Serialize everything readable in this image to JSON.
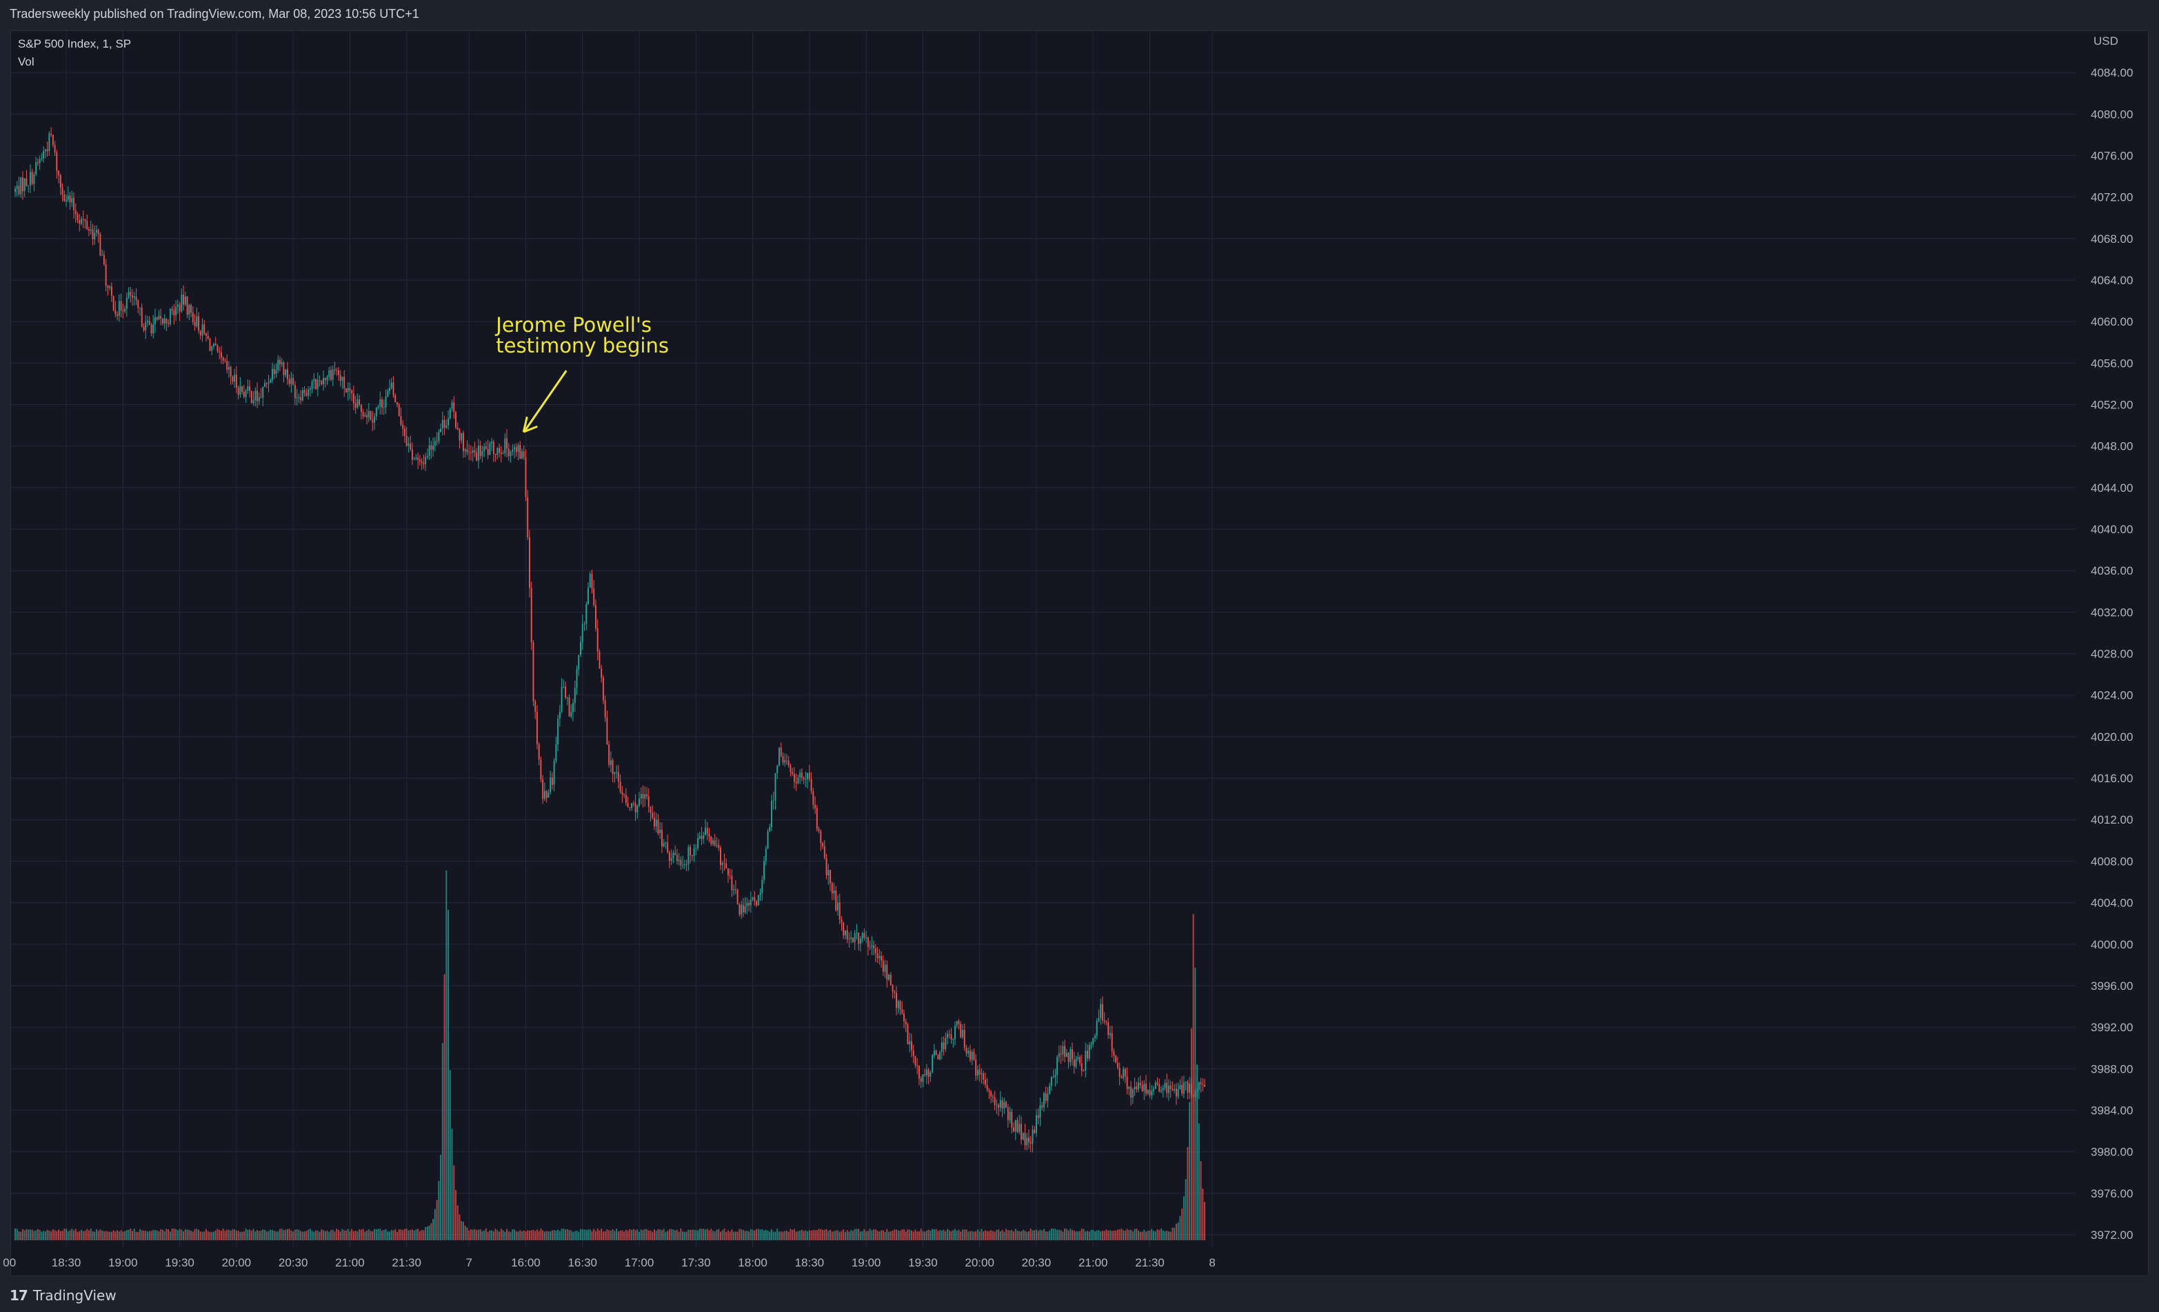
{
  "header": {
    "publish_text": "Tradersweekly published on TradingView.com, Mar 08, 2023 10:56 UTC+1"
  },
  "legend": {
    "symbol": "S&P 500 Index, 1, SP",
    "volume": "Vol"
  },
  "footer": {
    "brand": "TradingView",
    "logo_mark": "17"
  },
  "colors": {
    "background": "#141722",
    "frame": "#1e222d",
    "grid": "#232837",
    "text": "#b2b5be",
    "up": "#26a69a",
    "down": "#ef5350",
    "annotation": "#f0e63c"
  },
  "chart_data": {
    "type": "candlestick",
    "currency": "USD",
    "y_ticks": [
      4084,
      4080,
      4076,
      4072,
      4068,
      4064,
      4060,
      4056,
      4052,
      4048,
      4044,
      4040,
      4036,
      4032,
      4028,
      4024,
      4020,
      4016,
      4012,
      4008,
      4004,
      4000,
      3996,
      3992,
      3988,
      3984,
      3980,
      3976,
      3972
    ],
    "y_tick_format": "fixed2",
    "ylim": [
      3970.8,
      4088.0
    ],
    "x_ticks": [
      "00",
      "18:30",
      "19:00",
      "19:30",
      "20:00",
      "20:30",
      "21:00",
      "21:30",
      "7",
      "16:00",
      "16:30",
      "17:00",
      "17:30",
      "18:00",
      "18:30",
      "19:00",
      "19:30",
      "20:00",
      "20:30",
      "21:00",
      "21:30",
      "8"
    ],
    "x_tick_bar_index": [
      -3,
      27,
      57,
      87,
      117,
      147,
      177,
      207,
      240,
      270,
      300,
      330,
      360,
      390,
      420,
      450,
      480,
      510,
      540,
      570,
      600,
      633
    ],
    "bar_count": 630,
    "path_anchors": [
      [
        0,
        4072.5
      ],
      [
        10,
        4074
      ],
      [
        20,
        4077.8
      ],
      [
        25,
        4073
      ],
      [
        35,
        4070
      ],
      [
        45,
        4068
      ],
      [
        50,
        4063
      ],
      [
        55,
        4061
      ],
      [
        62,
        4062.5
      ],
      [
        70,
        4059.5
      ],
      [
        80,
        4060
      ],
      [
        90,
        4062
      ],
      [
        100,
        4059
      ],
      [
        110,
        4056
      ],
      [
        120,
        4053.5
      ],
      [
        130,
        4052.5
      ],
      [
        140,
        4056.5
      ],
      [
        150,
        4053
      ],
      [
        160,
        4054
      ],
      [
        170,
        4055.5
      ],
      [
        180,
        4052
      ],
      [
        190,
        4051
      ],
      [
        200,
        4053.5
      ],
      [
        210,
        4047.5
      ],
      [
        215,
        4046
      ],
      [
        225,
        4049.5
      ],
      [
        232,
        4051.5
      ],
      [
        240,
        4047
      ],
      [
        250,
        4047.5
      ],
      [
        260,
        4048
      ],
      [
        270,
        4047
      ],
      [
        272,
        4040
      ],
      [
        275,
        4024
      ],
      [
        280,
        4014
      ],
      [
        285,
        4016
      ],
      [
        290,
        4025
      ],
      [
        295,
        4022
      ],
      [
        305,
        4035.5
      ],
      [
        315,
        4018
      ],
      [
        325,
        4013
      ],
      [
        335,
        4014
      ],
      [
        345,
        4009
      ],
      [
        355,
        4008
      ],
      [
        365,
        4011
      ],
      [
        375,
        4008
      ],
      [
        385,
        4003
      ],
      [
        395,
        4004.5
      ],
      [
        405,
        4019
      ],
      [
        412,
        4016
      ],
      [
        420,
        4016
      ],
      [
        430,
        4007
      ],
      [
        440,
        4001
      ],
      [
        450,
        4000.5
      ],
      [
        460,
        3998
      ],
      [
        470,
        3993
      ],
      [
        480,
        3986.5
      ],
      [
        490,
        3990
      ],
      [
        500,
        3992
      ],
      [
        510,
        3987.5
      ],
      [
        520,
        3985
      ],
      [
        530,
        3982.5
      ],
      [
        537,
        3980.5
      ],
      [
        545,
        3985
      ],
      [
        555,
        3990
      ],
      [
        565,
        3988
      ],
      [
        575,
        3993.5
      ],
      [
        585,
        3988
      ],
      [
        590,
        3986
      ],
      [
        594,
        3986
      ]
    ],
    "volume": {
      "baseline_bars": 3,
      "spikes": [
        {
          "bar": 228,
          "height": 40
        },
        {
          "bar": 229,
          "height": 20
        },
        {
          "bar": 623,
          "height": 46
        },
        {
          "bar": 624,
          "height": 18
        }
      ]
    },
    "annotations": [
      {
        "lines": [
          "Jerome Powell's",
          "testimony begins"
        ],
        "bar": 263,
        "price": 4059
      }
    ]
  }
}
